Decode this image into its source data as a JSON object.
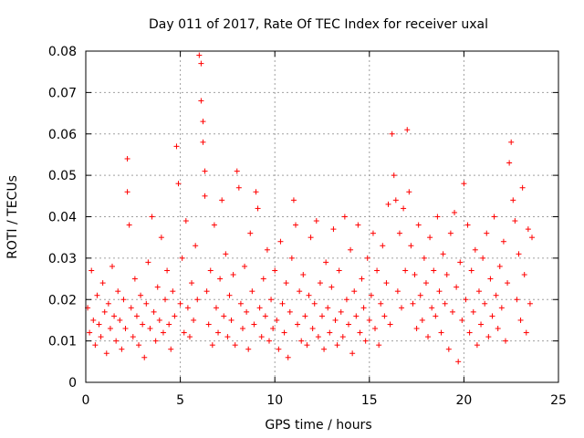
{
  "chart_data": {
    "type": "scatter",
    "title": "Day 011 of 2017, Rate Of TEC Index for receiver uxal",
    "xlabel": "GPS time / hours",
    "ylabel": "ROTI / TECUs",
    "xlim": [
      0,
      25
    ],
    "ylim": [
      0,
      0.08
    ],
    "x_ticks": [
      "0",
      "5",
      "10",
      "15",
      "20",
      "25"
    ],
    "y_ticks": [
      "0",
      "0.01",
      "0.02",
      "0.03",
      "0.04",
      "0.05",
      "0.06",
      "0.07",
      "0.08"
    ],
    "grid": true,
    "marker": "+",
    "color": "#ff0000",
    "series": [
      {
        "name": "ROTI",
        "points": [
          [
            0.1,
            0.018
          ],
          [
            0.2,
            0.012
          ],
          [
            0.3,
            0.027
          ],
          [
            0.4,
            0.015
          ],
          [
            0.5,
            0.009
          ],
          [
            0.6,
            0.021
          ],
          [
            0.7,
            0.014
          ],
          [
            0.8,
            0.011
          ],
          [
            0.9,
            0.024
          ],
          [
            1.0,
            0.017
          ],
          [
            1.1,
            0.007
          ],
          [
            1.2,
            0.019
          ],
          [
            1.3,
            0.013
          ],
          [
            1.4,
            0.028
          ],
          [
            1.5,
            0.016
          ],
          [
            1.6,
            0.01
          ],
          [
            1.7,
            0.022
          ],
          [
            1.8,
            0.015
          ],
          [
            1.9,
            0.008
          ],
          [
            2.0,
            0.02
          ],
          [
            2.1,
            0.013
          ],
          [
            2.2,
            0.054
          ],
          [
            2.2,
            0.046
          ],
          [
            2.3,
            0.038
          ],
          [
            2.4,
            0.018
          ],
          [
            2.5,
            0.011
          ],
          [
            2.6,
            0.025
          ],
          [
            2.7,
            0.016
          ],
          [
            2.8,
            0.009
          ],
          [
            2.9,
            0.021
          ],
          [
            3.0,
            0.014
          ],
          [
            3.1,
            0.006
          ],
          [
            3.2,
            0.019
          ],
          [
            3.3,
            0.029
          ],
          [
            3.4,
            0.013
          ],
          [
            3.5,
            0.04
          ],
          [
            3.6,
            0.017
          ],
          [
            3.7,
            0.01
          ],
          [
            3.8,
            0.023
          ],
          [
            3.9,
            0.015
          ],
          [
            4.0,
            0.035
          ],
          [
            4.1,
            0.012
          ],
          [
            4.2,
            0.02
          ],
          [
            4.3,
            0.027
          ],
          [
            4.4,
            0.014
          ],
          [
            4.5,
            0.008
          ],
          [
            4.6,
            0.022
          ],
          [
            4.7,
            0.016
          ],
          [
            4.8,
            0.057
          ],
          [
            4.9,
            0.048
          ],
          [
            5.0,
            0.019
          ],
          [
            5.1,
            0.03
          ],
          [
            5.2,
            0.012
          ],
          [
            5.3,
            0.039
          ],
          [
            5.4,
            0.018
          ],
          [
            5.5,
            0.011
          ],
          [
            5.6,
            0.024
          ],
          [
            5.7,
            0.015
          ],
          [
            5.8,
            0.033
          ],
          [
            5.9,
            0.02
          ],
          [
            6.0,
            0.079
          ],
          [
            6.1,
            0.077
          ],
          [
            6.1,
            0.068
          ],
          [
            6.2,
            0.063
          ],
          [
            6.2,
            0.058
          ],
          [
            6.3,
            0.051
          ],
          [
            6.3,
            0.045
          ],
          [
            6.4,
            0.022
          ],
          [
            6.5,
            0.014
          ],
          [
            6.6,
            0.027
          ],
          [
            6.7,
            0.009
          ],
          [
            6.8,
            0.038
          ],
          [
            6.9,
            0.018
          ],
          [
            7.0,
            0.012
          ],
          [
            7.1,
            0.025
          ],
          [
            7.2,
            0.044
          ],
          [
            7.3,
            0.016
          ],
          [
            7.4,
            0.031
          ],
          [
            7.5,
            0.011
          ],
          [
            7.6,
            0.021
          ],
          [
            7.7,
            0.015
          ],
          [
            7.8,
            0.026
          ],
          [
            7.9,
            0.009
          ],
          [
            8.0,
            0.051
          ],
          [
            8.1,
            0.047
          ],
          [
            8.2,
            0.019
          ],
          [
            8.3,
            0.013
          ],
          [
            8.4,
            0.028
          ],
          [
            8.5,
            0.017
          ],
          [
            8.6,
            0.008
          ],
          [
            8.7,
            0.036
          ],
          [
            8.8,
            0.022
          ],
          [
            8.9,
            0.014
          ],
          [
            9.0,
            0.046
          ],
          [
            9.1,
            0.042
          ],
          [
            9.2,
            0.018
          ],
          [
            9.3,
            0.011
          ],
          [
            9.4,
            0.025
          ],
          [
            9.5,
            0.016
          ],
          [
            9.6,
            0.032
          ],
          [
            9.7,
            0.01
          ],
          [
            9.8,
            0.02
          ],
          [
            9.9,
            0.013
          ],
          [
            10.0,
            0.027
          ],
          [
            10.1,
            0.015
          ],
          [
            10.2,
            0.008
          ],
          [
            10.3,
            0.034
          ],
          [
            10.4,
            0.019
          ],
          [
            10.5,
            0.012
          ],
          [
            10.6,
            0.024
          ],
          [
            10.7,
            0.006
          ],
          [
            10.8,
            0.017
          ],
          [
            10.9,
            0.03
          ],
          [
            11.0,
            0.044
          ],
          [
            11.1,
            0.038
          ],
          [
            11.2,
            0.014
          ],
          [
            11.3,
            0.022
          ],
          [
            11.4,
            0.01
          ],
          [
            11.5,
            0.026
          ],
          [
            11.6,
            0.016
          ],
          [
            11.7,
            0.009
          ],
          [
            11.8,
            0.021
          ],
          [
            11.9,
            0.035
          ],
          [
            12.0,
            0.013
          ],
          [
            12.1,
            0.019
          ],
          [
            12.2,
            0.039
          ],
          [
            12.3,
            0.011
          ],
          [
            12.4,
            0.024
          ],
          [
            12.5,
            0.016
          ],
          [
            12.6,
            0.008
          ],
          [
            12.7,
            0.029
          ],
          [
            12.8,
            0.018
          ],
          [
            12.9,
            0.012
          ],
          [
            13.0,
            0.023
          ],
          [
            13.1,
            0.037
          ],
          [
            13.2,
            0.015
          ],
          [
            13.3,
            0.009
          ],
          [
            13.4,
            0.027
          ],
          [
            13.5,
            0.017
          ],
          [
            13.6,
            0.011
          ],
          [
            13.7,
            0.04
          ],
          [
            13.8,
            0.02
          ],
          [
            13.9,
            0.014
          ],
          [
            14.0,
            0.032
          ],
          [
            14.1,
            0.007
          ],
          [
            14.2,
            0.022
          ],
          [
            14.3,
            0.016
          ],
          [
            14.4,
            0.038
          ],
          [
            14.5,
            0.012
          ],
          [
            14.6,
            0.025
          ],
          [
            14.7,
            0.018
          ],
          [
            14.8,
            0.01
          ],
          [
            14.9,
            0.03
          ],
          [
            15.0,
            0.015
          ],
          [
            15.1,
            0.021
          ],
          [
            15.2,
            0.036
          ],
          [
            15.3,
            0.013
          ],
          [
            15.4,
            0.027
          ],
          [
            15.5,
            0.009
          ],
          [
            15.6,
            0.019
          ],
          [
            15.7,
            0.033
          ],
          [
            15.8,
            0.016
          ],
          [
            15.9,
            0.024
          ],
          [
            16.0,
            0.043
          ],
          [
            16.1,
            0.014
          ],
          [
            16.2,
            0.06
          ],
          [
            16.3,
            0.05
          ],
          [
            16.4,
            0.044
          ],
          [
            16.5,
            0.022
          ],
          [
            16.6,
            0.036
          ],
          [
            16.7,
            0.018
          ],
          [
            16.8,
            0.042
          ],
          [
            16.9,
            0.027
          ],
          [
            17.0,
            0.061
          ],
          [
            17.1,
            0.046
          ],
          [
            17.2,
            0.033
          ],
          [
            17.3,
            0.019
          ],
          [
            17.4,
            0.026
          ],
          [
            17.5,
            0.013
          ],
          [
            17.6,
            0.038
          ],
          [
            17.7,
            0.021
          ],
          [
            17.8,
            0.015
          ],
          [
            17.9,
            0.03
          ],
          [
            18.0,
            0.024
          ],
          [
            18.1,
            0.011
          ],
          [
            18.2,
            0.035
          ],
          [
            18.3,
            0.018
          ],
          [
            18.4,
            0.027
          ],
          [
            18.5,
            0.016
          ],
          [
            18.6,
            0.04
          ],
          [
            18.7,
            0.022
          ],
          [
            18.8,
            0.012
          ],
          [
            18.9,
            0.031
          ],
          [
            19.0,
            0.019
          ],
          [
            19.1,
            0.026
          ],
          [
            19.2,
            0.008
          ],
          [
            19.3,
            0.036
          ],
          [
            19.4,
            0.017
          ],
          [
            19.5,
            0.041
          ],
          [
            19.6,
            0.023
          ],
          [
            19.7,
            0.005
          ],
          [
            19.8,
            0.029
          ],
          [
            19.9,
            0.015
          ],
          [
            20.0,
            0.048
          ],
          [
            20.1,
            0.02
          ],
          [
            20.2,
            0.038
          ],
          [
            20.3,
            0.012
          ],
          [
            20.4,
            0.027
          ],
          [
            20.5,
            0.017
          ],
          [
            20.6,
            0.032
          ],
          [
            20.7,
            0.009
          ],
          [
            20.8,
            0.022
          ],
          [
            20.9,
            0.014
          ],
          [
            21.0,
            0.03
          ],
          [
            21.1,
            0.019
          ],
          [
            21.2,
            0.036
          ],
          [
            21.3,
            0.011
          ],
          [
            21.4,
            0.025
          ],
          [
            21.5,
            0.016
          ],
          [
            21.6,
            0.04
          ],
          [
            21.7,
            0.021
          ],
          [
            21.8,
            0.013
          ],
          [
            21.9,
            0.028
          ],
          [
            22.0,
            0.018
          ],
          [
            22.1,
            0.034
          ],
          [
            22.2,
            0.01
          ],
          [
            22.3,
            0.024
          ],
          [
            22.4,
            0.053
          ],
          [
            22.5,
            0.058
          ],
          [
            22.6,
            0.044
          ],
          [
            22.7,
            0.039
          ],
          [
            22.8,
            0.02
          ],
          [
            22.9,
            0.031
          ],
          [
            23.0,
            0.015
          ],
          [
            23.1,
            0.047
          ],
          [
            23.2,
            0.026
          ],
          [
            23.3,
            0.012
          ],
          [
            23.4,
            0.037
          ],
          [
            23.5,
            0.019
          ],
          [
            23.6,
            0.035
          ]
        ]
      }
    ]
  }
}
